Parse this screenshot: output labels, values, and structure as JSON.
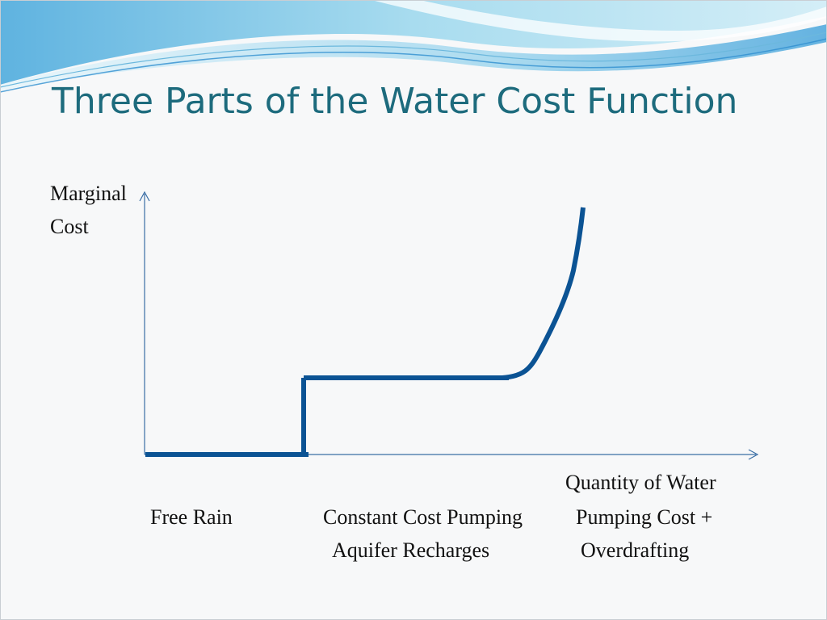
{
  "title": "Three Parts of the Water Cost Function",
  "y_axis_label_line1": "Marginal",
  "y_axis_label_line2": "Cost",
  "x_axis_label": "Quantity of Water",
  "segments": [
    {
      "label_line1": "Free Rain",
      "label_line2": ""
    },
    {
      "label_line1": "Constant Cost Pumping",
      "label_line2": "Aquifer Recharges"
    },
    {
      "label_line1": "Pumping Cost +",
      "label_line2": "Overdrafting"
    }
  ],
  "colors": {
    "title": "#1d6b7d",
    "curve": "#0b5394",
    "axes": "#3a6ea5",
    "header_wave_light": "#bfe6f3",
    "header_wave_mid": "#7cc8e6",
    "header_wave_dark": "#2f8fcf"
  }
}
